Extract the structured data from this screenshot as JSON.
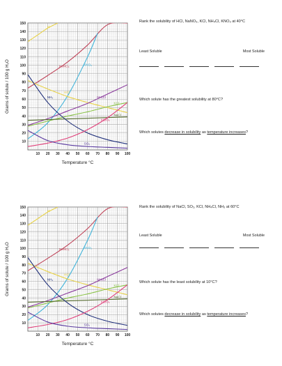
{
  "worksheet": [
    {
      "rank_prompt": "Rank the solubility of HCl, NaNO₃, KCl, NH₄Cl, KNO₃ at 40°C",
      "least_label": "Least Soluble",
      "most_label": "Most Soluble",
      "question1": "Which solute has the greatest solubility at 80°C?",
      "question2_prefix": "Which solutes ",
      "question2_underlined1": "decrease in solubility",
      "question2_middle": " as ",
      "question2_underlined2": "temperature increases",
      "question2_suffix": "?"
    },
    {
      "rank_prompt": "Rank the solubility of NaCl, SO₂, KCl, NH₄Cl, NH₃ at 60°C",
      "least_label": "Least Soluble",
      "most_label": "Most Soluble",
      "question1": "Which solute has the least solubility at 10°C?",
      "question2_prefix": "Which solutes ",
      "question2_underlined1": "decrease in solubility",
      "question2_middle": " as ",
      "question2_underlined2": "temperature increases",
      "question2_suffix": "?"
    }
  ],
  "chart_data": [
    {
      "type": "line",
      "xlabel": "Temperature °C",
      "ylabel": "Grams of solute / 100 g H₂O",
      "xlim": [
        0,
        100
      ],
      "ylim": [
        0,
        150
      ],
      "x_ticks": [
        10,
        20,
        30,
        40,
        50,
        60,
        70,
        80,
        90,
        100
      ],
      "y_ticks": [
        10,
        20,
        30,
        40,
        50,
        60,
        70,
        80,
        90,
        100,
        110,
        120,
        130,
        140,
        150
      ],
      "grid": true,
      "series": [
        {
          "name": "KI",
          "color": "#e8d24a",
          "x": [
            0,
            10,
            20,
            30
          ],
          "y": [
            128,
            136,
            144,
            150
          ]
        },
        {
          "name": "NaNO₃",
          "color": "#c0455a",
          "x": [
            0,
            20,
            40,
            60,
            80,
            100
          ],
          "y": [
            73,
            88,
            104,
            124,
            148,
            150
          ]
        },
        {
          "name": "KNO₃",
          "color": "#3fb3d9",
          "x": [
            0,
            20,
            40,
            60,
            70
          ],
          "y": [
            13,
            32,
            64,
            110,
            138
          ]
        },
        {
          "name": "HCl",
          "color": "#e8d24a",
          "x": [
            0,
            20,
            40,
            60,
            80,
            100
          ],
          "y": [
            82,
            72,
            63,
            56,
            50,
            44
          ]
        },
        {
          "name": "NH₄Cl",
          "color": "#8a3a9c",
          "x": [
            0,
            20,
            40,
            60,
            80,
            100
          ],
          "y": [
            29,
            37,
            46,
            55,
            66,
            77
          ]
        },
        {
          "name": "KCl",
          "color": "#8bc34a",
          "x": [
            0,
            20,
            40,
            60,
            80,
            100
          ],
          "y": [
            28,
            34,
            40,
            45,
            51,
            56
          ]
        },
        {
          "name": "NaCl",
          "color": "#556b2f",
          "x": [
            0,
            100
          ],
          "y": [
            35,
            39
          ]
        },
        {
          "name": "NH₃",
          "color": "#1f2f7a",
          "x": [
            0,
            20,
            40,
            60,
            80,
            100
          ],
          "y": [
            89,
            56,
            34,
            20,
            12,
            7
          ]
        },
        {
          "name": "KClO₃",
          "color": "#e0407a",
          "x": [
            0,
            20,
            40,
            60,
            80,
            100
          ],
          "y": [
            4,
            8,
            14,
            24,
            38,
            56
          ]
        },
        {
          "name": "SO₂",
          "color": "#5a3aa0",
          "x": [
            0,
            20,
            40,
            60,
            80,
            100
          ],
          "y": [
            23,
            11,
            6,
            4,
            3,
            2
          ]
        }
      ]
    },
    {
      "type": "line",
      "xlabel": "Temperature °C",
      "ylabel": "Grams of solute / 100 g H₂O",
      "xlim": [
        0,
        100
      ],
      "ylim": [
        0,
        150
      ],
      "x_ticks": [
        10,
        20,
        30,
        40,
        50,
        60,
        70,
        80,
        90,
        100
      ],
      "y_ticks": [
        10,
        20,
        30,
        40,
        50,
        60,
        70,
        80,
        90,
        100,
        110,
        120,
        130,
        140,
        150
      ],
      "grid": true,
      "series": [
        {
          "name": "KI",
          "color": "#e8d24a",
          "x": [
            0,
            10,
            20,
            30
          ],
          "y": [
            128,
            136,
            144,
            150
          ]
        },
        {
          "name": "NaNO₃",
          "color": "#c0455a",
          "x": [
            0,
            20,
            40,
            60,
            80,
            100
          ],
          "y": [
            73,
            88,
            104,
            124,
            148,
            150
          ]
        },
        {
          "name": "KNO₃",
          "color": "#3fb3d9",
          "x": [
            0,
            20,
            40,
            60,
            70
          ],
          "y": [
            13,
            32,
            64,
            110,
            138
          ]
        },
        {
          "name": "HCl",
          "color": "#e8d24a",
          "x": [
            0,
            20,
            40,
            60,
            80,
            100
          ],
          "y": [
            82,
            72,
            63,
            56,
            50,
            44
          ]
        },
        {
          "name": "NH₄Cl",
          "color": "#8a3a9c",
          "x": [
            0,
            20,
            40,
            60,
            80,
            100
          ],
          "y": [
            29,
            37,
            46,
            55,
            66,
            77
          ]
        },
        {
          "name": "KCl",
          "color": "#8bc34a",
          "x": [
            0,
            20,
            40,
            60,
            80,
            100
          ],
          "y": [
            28,
            34,
            40,
            45,
            51,
            56
          ]
        },
        {
          "name": "NaCl",
          "color": "#556b2f",
          "x": [
            0,
            100
          ],
          "y": [
            35,
            39
          ]
        },
        {
          "name": "NH₃",
          "color": "#1f2f7a",
          "x": [
            0,
            20,
            40,
            60,
            80,
            100
          ],
          "y": [
            89,
            56,
            34,
            20,
            12,
            7
          ]
        },
        {
          "name": "KClO₃",
          "color": "#e0407a",
          "x": [
            0,
            20,
            40,
            60,
            80,
            100
          ],
          "y": [
            4,
            8,
            14,
            24,
            38,
            56
          ]
        },
        {
          "name": "SO₂",
          "color": "#5a3aa0",
          "x": [
            0,
            20,
            40,
            60,
            80,
            100
          ],
          "y": [
            23,
            11,
            6,
            4,
            3,
            2
          ]
        }
      ]
    }
  ]
}
